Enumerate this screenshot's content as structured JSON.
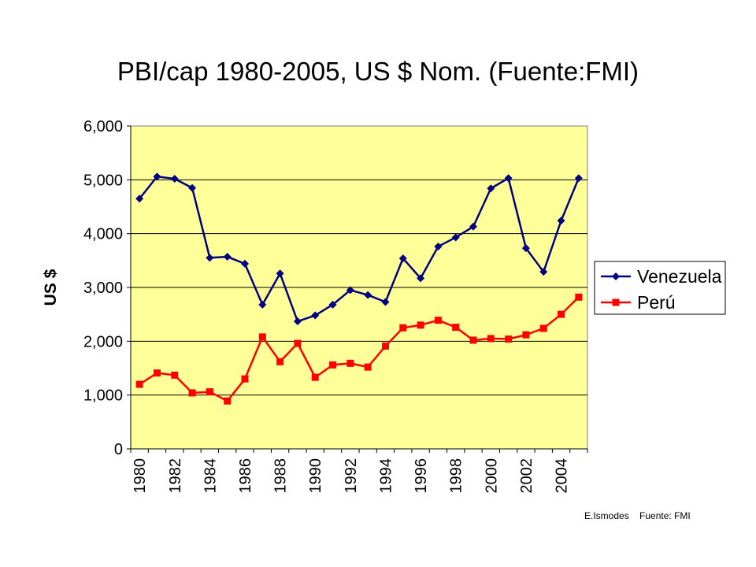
{
  "chart_data": {
    "type": "line",
    "title": "PBI/cap 1980-2005, US $ Nom. (Fuente:FMI)",
    "xlabel": "",
    "ylabel": "US $",
    "x": [
      1980,
      1981,
      1982,
      1983,
      1984,
      1985,
      1986,
      1987,
      1988,
      1989,
      1990,
      1991,
      1992,
      1993,
      1994,
      1995,
      1996,
      1997,
      1998,
      1999,
      2000,
      2001,
      2002,
      2003,
      2004,
      2005
    ],
    "x_tick_labels": [
      "1980",
      "1982",
      "1984",
      "1986",
      "1988",
      "1990",
      "1992",
      "1994",
      "1996",
      "1998",
      "2000",
      "2002",
      "2004"
    ],
    "ylim": [
      0,
      6000
    ],
    "y_ticks": [
      0,
      1000,
      2000,
      3000,
      4000,
      5000,
      6000
    ],
    "y_tick_labels": [
      "0",
      "1,000",
      "2,000",
      "3,000",
      "4,000",
      "5,000",
      "6,000"
    ],
    "grid": true,
    "legend_position": "right",
    "plot_background": "#ffff99",
    "series": [
      {
        "name": "Venezuela",
        "color": "#000080",
        "marker": "diamond",
        "values": [
          4650,
          5060,
          5020,
          4850,
          3550,
          3570,
          3440,
          2680,
          3260,
          2370,
          2480,
          2680,
          2950,
          2860,
          2730,
          3540,
          3170,
          3760,
          3930,
          4130,
          4840,
          5030,
          3730,
          3290,
          4240,
          5030
        ]
      },
      {
        "name": "Perú",
        "color": "#ff0000",
        "marker": "square",
        "values": [
          1200,
          1410,
          1370,
          1040,
          1060,
          890,
          1300,
          2080,
          1620,
          1960,
          1330,
          1560,
          1590,
          1520,
          1910,
          2250,
          2300,
          2390,
          2260,
          2020,
          2050,
          2040,
          2120,
          2240,
          2500,
          2820
        ]
      }
    ]
  },
  "credit": {
    "author": "E.Ismodes",
    "source": "Fuente: FMI"
  }
}
